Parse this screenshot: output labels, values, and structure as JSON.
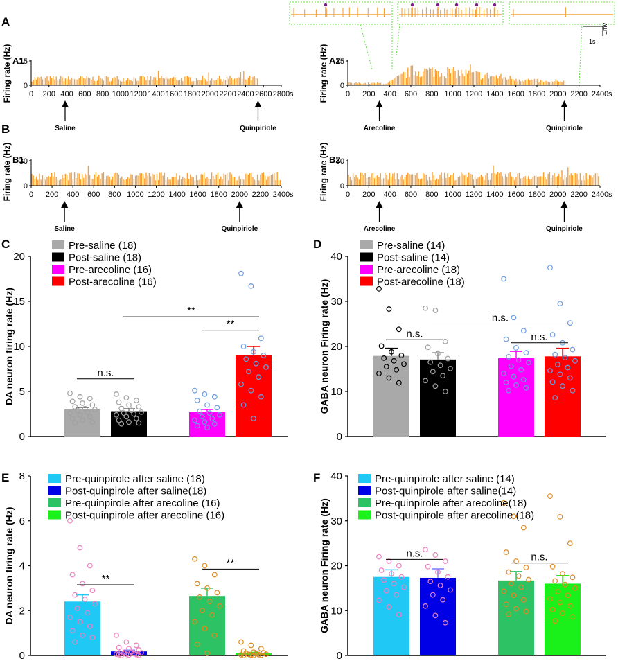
{
  "colors": {
    "trace": "#F7A035",
    "inset_border": "#66E04A",
    "dot_purple": "#7A1E86",
    "marker_blue": "#6C9CE0",
    "marker_gray": "#A0A0A0",
    "marker_pink": "#F080C0",
    "marker_orange": "#E08A20"
  },
  "panel_labels": {
    "A": "A",
    "B": "B",
    "C": "C",
    "D": "D",
    "E": "E",
    "F": "F"
  },
  "scale_bar": {
    "vertical": "1mv",
    "horizontal": "1s"
  },
  "chart_data": [
    {
      "id": "A1",
      "type": "line",
      "label": "A1",
      "ylabel": "Firing rate (Hz)",
      "ylim": [
        0,
        15
      ],
      "yticks": [
        "0",
        "15"
      ],
      "xunit": "s",
      "xmax": 2800,
      "xticks": [
        "0",
        "200",
        "400",
        "600",
        "800",
        "1000",
        "1200",
        "1400",
        "1600",
        "1800",
        "2000",
        "2200",
        "2400",
        "2600",
        "2800"
      ],
      "baseline": 5,
      "data_end": 2550,
      "events": [
        {
          "label": "Saline",
          "x": 380
        },
        {
          "label": "Quinpiriole",
          "x": 2540
        }
      ]
    },
    {
      "id": "A2",
      "type": "line",
      "label": "A2",
      "ylabel": "Firing rate (Hz)",
      "ylim": [
        0,
        15
      ],
      "yticks": [
        "0",
        "15"
      ],
      "xunit": "s",
      "xmax": 2400,
      "xticks": [
        "0",
        "200",
        "400",
        "600",
        "800",
        "1000",
        "1200",
        "1400",
        "1600",
        "1800",
        "2000",
        "2200",
        "2400"
      ],
      "data_end": 2070,
      "events": [
        {
          "label": "Arecoline",
          "x": 300
        },
        {
          "label": "Quinpiriole",
          "x": 2060
        }
      ]
    },
    {
      "id": "B1",
      "type": "line",
      "label": "B1",
      "ylabel": "Firing rate (Hz)",
      "ylim": [
        0,
        30
      ],
      "yticks": [
        "0",
        "30"
      ],
      "xunit": "s",
      "xmax": 2400,
      "xticks": [
        "0",
        "200",
        "400",
        "600",
        "800",
        "1000",
        "1200",
        "1400",
        "1600",
        "1800",
        "2000",
        "2200",
        "2400"
      ],
      "baseline": 14,
      "data_end": 2400,
      "events": [
        {
          "label": "Saline",
          "x": 320
        },
        {
          "label": "Quinpiriole",
          "x": 2000
        }
      ]
    },
    {
      "id": "B2",
      "type": "line",
      "label": "B2",
      "ylabel": "Firing rate (Hz)",
      "ylim": [
        0,
        30
      ],
      "yticks": [
        "0",
        "30"
      ],
      "xunit": "s",
      "xmax": 2400,
      "xticks": [
        "0",
        "200",
        "400",
        "600",
        "800",
        "1000",
        "1200",
        "1400",
        "1600",
        "1800",
        "2000",
        "2200",
        "2400"
      ],
      "baseline": 14,
      "data_end": 2400,
      "events": [
        {
          "label": "Arecoline",
          "x": 300
        },
        {
          "label": "Quinpiriole",
          "x": 2060
        }
      ]
    },
    {
      "id": "C",
      "type": "bar",
      "ylabel": "DA neuron firing rate (Hz)",
      "ylim": [
        0,
        20
      ],
      "yticks": [
        "0",
        "5",
        "10",
        "15",
        "20"
      ],
      "bars": [
        {
          "name": "Pre-saline (18)",
          "value": 3.0,
          "sem": 0.25,
          "color": "#A9A9A9",
          "marker": "#A0A0A0",
          "points": [
            4.8,
            4.4,
            4.2,
            3.9,
            3.7,
            3.5,
            3.3,
            3.1,
            3.0,
            2.9,
            2.7,
            2.6,
            2.4,
            2.2,
            2.0,
            1.8,
            1.6,
            1.5
          ]
        },
        {
          "name": "Post-saline (18)",
          "value": 2.8,
          "sem": 0.3,
          "color": "#000000",
          "marker": "#A0A0A0",
          "points": [
            4.7,
            4.3,
            4.0,
            3.8,
            3.5,
            3.3,
            3.1,
            2.9,
            2.7,
            2.6,
            2.5,
            2.4,
            2.2,
            2.0,
            1.8,
            1.6,
            1.5,
            1.4
          ]
        },
        {
          "name": "Pre-arecoline (16)",
          "value": 2.7,
          "sem": 0.3,
          "color": "#FF00FF",
          "marker": "#6C9CE0",
          "points": [
            5.1,
            4.7,
            4.4,
            4.0,
            3.5,
            3.2,
            2.8,
            2.6,
            2.4,
            2.2,
            2.0,
            1.8,
            1.6,
            1.4,
            1.2,
            1.0
          ]
        },
        {
          "name": "Post-arecoline (16)",
          "value": 9.0,
          "sem": 1.0,
          "color": "#FF0000",
          "marker": "#6C9CE0",
          "points": [
            18.1,
            16.7,
            10.9,
            10.0,
            9.4,
            9.0,
            8.6,
            8.1,
            7.7,
            7.2,
            6.6,
            5.8,
            5.1,
            4.4,
            3.5,
            2.0
          ]
        }
      ],
      "comparisons": [
        {
          "a": 0,
          "b": 1,
          "label": "n.s.",
          "y": 6.4
        },
        {
          "a": 2,
          "b": 3,
          "label": "**",
          "y": 11.8
        },
        {
          "a": 1,
          "b": 3,
          "label": "**",
          "y": 13.3
        }
      ]
    },
    {
      "id": "D",
      "type": "bar",
      "ylabel": "GABA neuron Firing rate (Hz)",
      "ylim": [
        0,
        40
      ],
      "yticks": [
        "0",
        "10",
        "20",
        "30",
        "40"
      ],
      "bars": [
        {
          "name": "Pre-saline (14)",
          "value": 17.9,
          "sem": 1.7,
          "color": "#A9A9A9",
          "marker": "#000000",
          "points": [
            32.8,
            28.3,
            23.8,
            20.1,
            18.8,
            18.0,
            17.4,
            16.8,
            16.1,
            15.5,
            14.8,
            14.0,
            13.0,
            11.9
          ]
        },
        {
          "name": "Post-saline (14)",
          "value": 17.1,
          "sem": 1.5,
          "color": "#000000",
          "marker": "#A0A0A0",
          "points": [
            28.5,
            28.0,
            21.1,
            19.8,
            18.4,
            17.3,
            16.5,
            15.8,
            15.1,
            14.4,
            13.5,
            12.4,
            11.2,
            10.0
          ]
        },
        {
          "name": "Pre-arecoline (18)",
          "value": 17.4,
          "sem": 1.5,
          "color": "#FF00FF",
          "marker": "#6C9CE0",
          "points": [
            35.0,
            26.4,
            23.5,
            21.6,
            19.7,
            18.6,
            17.7,
            17.0,
            16.4,
            15.6,
            14.8,
            14.0,
            13.3,
            12.6,
            12.0,
            11.4,
            10.8,
            10.2
          ]
        },
        {
          "name": "Post-arecoline (18)",
          "value": 17.8,
          "sem": 1.8,
          "color": "#FF0000",
          "marker": "#6C9CE0",
          "points": [
            37.5,
            29.5,
            25.2,
            22.6,
            20.8,
            19.3,
            18.2,
            17.5,
            16.8,
            16.0,
            15.3,
            14.6,
            13.8,
            13.0,
            12.1,
            11.2,
            10.2,
            8.6
          ]
        }
      ],
      "comparisons": [
        {
          "a": 0,
          "b": 1,
          "label": "n.s.",
          "y": 21.5
        },
        {
          "a": 2,
          "b": 3,
          "label": "n.s.",
          "y": 20.8
        },
        {
          "a": 1,
          "b": 3,
          "label": "n.s.",
          "y": 25.0
        }
      ]
    },
    {
      "id": "E",
      "type": "bar",
      "ylabel": "DA neuron firing rate (Hz)",
      "ylim": [
        0,
        8
      ],
      "yticks": [
        "0",
        "2",
        "4",
        "6",
        "8"
      ],
      "bars": [
        {
          "name": "Pre-quinpirole after saline (18)",
          "value": 2.4,
          "sem": 0.3,
          "color": "#1FC8F5",
          "marker": "#F080C0",
          "points": [
            6.0,
            4.8,
            4.0,
            3.6,
            3.2,
            2.9,
            2.7,
            2.5,
            2.3,
            2.1,
            1.9,
            1.7,
            1.5,
            1.3,
            1.1,
            0.9,
            0.8,
            0.6
          ]
        },
        {
          "name": "Post-quinpirole after saline(18)",
          "value": 0.18,
          "sem": 0.06,
          "color": "#0000E6",
          "marker": "#F080C0",
          "points": [
            0.9,
            0.6,
            0.45,
            0.35,
            0.3,
            0.25,
            0.2,
            0.15,
            0.12,
            0.1,
            0.08,
            0.06,
            0.05,
            0.04,
            0.03,
            0.02,
            0.01,
            0.0
          ]
        },
        {
          "name": "Pre-quinpirole after arecoline (16)",
          "value": 2.65,
          "sem": 0.35,
          "color": "#2DC264",
          "marker": "#E08A20",
          "points": [
            4.3,
            4.0,
            3.6,
            3.2,
            3.0,
            2.8,
            2.6,
            2.4,
            2.2,
            2.0,
            1.8,
            1.5,
            1.2,
            0.9,
            0.5,
            0.1
          ]
        },
        {
          "name": "Post-quinpirole after arecoline (16)",
          "value": 0.1,
          "sem": 0.04,
          "color": "#1AF01A",
          "marker": "#E08A20",
          "points": [
            0.6,
            0.45,
            0.3,
            0.2,
            0.15,
            0.12,
            0.1,
            0.08,
            0.06,
            0.05,
            0.04,
            0.03,
            0.02,
            0.01,
            0.0,
            0.0
          ]
        }
      ],
      "comparisons": [
        {
          "a": 0,
          "b": 1,
          "label": "**",
          "y": 3.15
        },
        {
          "a": 2,
          "b": 3,
          "label": "**",
          "y": 3.85
        }
      ]
    },
    {
      "id": "F",
      "type": "bar",
      "ylabel": "GABA neuron Firing rate (Hz)",
      "ylim": [
        0,
        40
      ],
      "yticks": [
        "0",
        "10",
        "20",
        "30",
        "40"
      ],
      "bars": [
        {
          "name": "Pre-quinpirole after saline (14)",
          "value": 17.5,
          "sem": 1.6,
          "color": "#1FC8F5",
          "marker": "#F080C0",
          "points": [
            22.0,
            21.0,
            20.0,
            19.0,
            18.2,
            17.5,
            16.8,
            16.0,
            15.2,
            14.4,
            13.5,
            12.3,
            10.8,
            9.1
          ]
        },
        {
          "name": "Post-quinpirole after saline(14)",
          "value": 17.3,
          "sem": 2.0,
          "color": "#0000E6",
          "marker": "#F080C0",
          "points": [
            23.6,
            22.4,
            21.0,
            19.8,
            18.6,
            17.5,
            16.5,
            15.6,
            14.6,
            13.5,
            12.4,
            11.0,
            8.9,
            7.3
          ]
        },
        {
          "name": "Pre-quinpirole after arecoline(18)",
          "value": 16.7,
          "sem": 2.0,
          "color": "#2DC264",
          "marker": "#E08A20",
          "points": [
            34.0,
            31.0,
            28.5,
            23.0,
            21.0,
            19.6,
            18.6,
            17.7,
            16.9,
            16.0,
            15.2,
            14.3,
            13.4,
            12.4,
            11.4,
            10.4,
            9.8,
            9.2
          ]
        },
        {
          "name": "Post-quinpirole after arecoline (18)",
          "value": 16.0,
          "sem": 1.8,
          "color": "#1AF01A",
          "marker": "#E08A20",
          "points": [
            35.5,
            30.9,
            25.0,
            19.8,
            18.2,
            17.4,
            16.6,
            15.8,
            15.0,
            14.2,
            13.4,
            12.6,
            11.8,
            11.0,
            10.2,
            9.4,
            8.6,
            7.7
          ]
        }
      ],
      "comparisons": [
        {
          "a": 0,
          "b": 1,
          "label": "n.s.",
          "y": 21.4
        },
        {
          "a": 2,
          "b": 3,
          "label": "n.s.",
          "y": 20.6
        }
      ]
    }
  ]
}
